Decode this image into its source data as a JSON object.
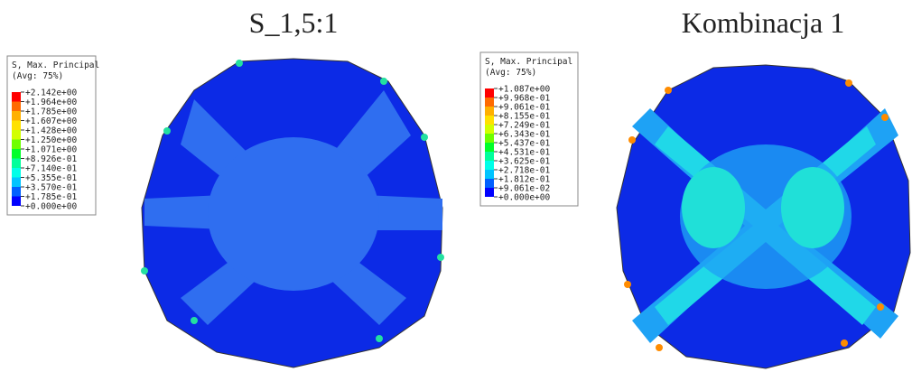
{
  "panels": [
    {
      "title": "S_1,5:1",
      "legend": {
        "title": "S, Max. Principal",
        "subtitle": "(Avg: 75%)",
        "labels": [
          "+2.142e+00",
          "+1.964e+00",
          "+1.785e+00",
          "+1.607e+00",
          "+1.428e+00",
          "+1.250e+00",
          "+1.071e+00",
          "+8.926e-01",
          "+7.140e-01",
          "+5.355e-01",
          "+3.570e-01",
          "+1.785e-01",
          "+0.000e+00"
        ]
      }
    },
    {
      "title": "Kombinacja 1",
      "legend": {
        "title": "S, Max. Principal",
        "subtitle": "(Avg: 75%)",
        "labels": [
          "+1.087e+00",
          "+9.968e-01",
          "+9.061e-01",
          "+8.155e-01",
          "+7.249e-01",
          "+6.343e-01",
          "+5.437e-01",
          "+4.531e-01",
          "+3.625e-01",
          "+2.718e-01",
          "+1.812e-01",
          "+9.061e-02",
          "+0.000e+00"
        ]
      }
    }
  ]
}
